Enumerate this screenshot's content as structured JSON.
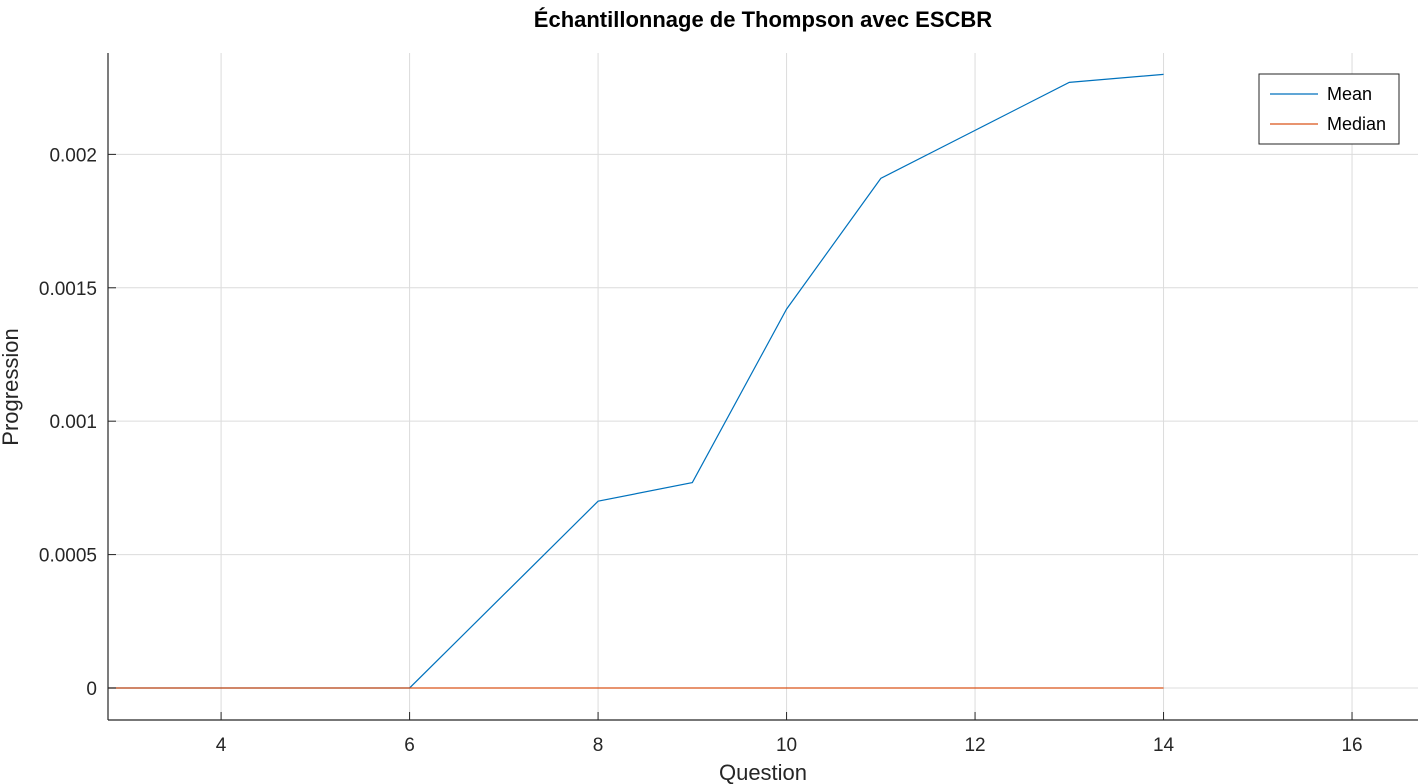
{
  "chart_data": {
    "type": "line",
    "title": "Échantillonnage de Thompson avec ESCBR",
    "xlabel": "Question",
    "ylabel": "Progression",
    "xlim": [
      2.8,
      16.7
    ],
    "ylim": [
      -0.00012,
      0.00238
    ],
    "xticks": [
      4,
      6,
      8,
      10,
      12,
      14,
      16
    ],
    "yticks": [
      0,
      0.0005,
      0.001,
      0.0015,
      0.002
    ],
    "ytick_labels": [
      "0",
      "0.0005",
      "0.001",
      "0.0015",
      "0.002"
    ],
    "grid": true,
    "legend_position": "top-right",
    "series": [
      {
        "name": "Mean",
        "color": "#0072BD",
        "x": [
          2.8,
          3,
          4,
          5,
          6,
          7,
          8,
          9,
          10,
          11,
          12,
          13,
          14
        ],
        "y": [
          0,
          0,
          0,
          0,
          0,
          0.00035,
          0.0007,
          0.00077,
          0.00142,
          0.00191,
          0.00209,
          0.00227,
          0.0023
        ]
      },
      {
        "name": "Median",
        "color": "#D95319",
        "x": [
          2.8,
          3,
          4,
          5,
          6,
          7,
          8,
          9,
          10,
          11,
          12,
          13,
          14
        ],
        "y": [
          0,
          0,
          0,
          0,
          0,
          0,
          0,
          0,
          0,
          0,
          0,
          0,
          0
        ]
      }
    ]
  }
}
